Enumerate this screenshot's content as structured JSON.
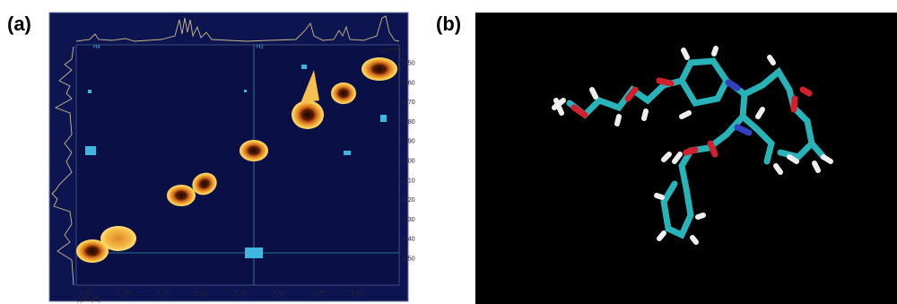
{
  "panels": {
    "a": {
      "label": "(a)",
      "x_ticks": [
        "4.50",
        "4.38",
        "4.25",
        "4.13",
        "4.00",
        "3.88",
        "3.75",
        "3.63"
      ],
      "x_axis_label": "ppm (f2)",
      "y_ticks": [
        "3.50",
        "3.60",
        "3.70",
        "3.80",
        "3.90",
        "4.00",
        "4.10",
        "4.20",
        "4.30",
        "4.40",
        "4.50"
      ],
      "y_axis_label": "ppm (f1)",
      "annotations": [
        "H4",
        "H2"
      ]
    },
    "b": {
      "label": "(b)"
    }
  }
}
